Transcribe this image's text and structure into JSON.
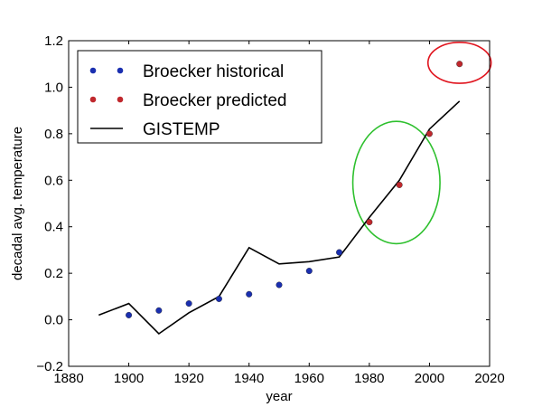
{
  "chart_data": {
    "type": "scatter",
    "xlabel": "year",
    "ylabel": "decadal avg. temperature",
    "xlim": [
      1880,
      2020
    ],
    "ylim": [
      -0.2,
      1.2
    ],
    "x_ticks": [
      1880,
      1900,
      1920,
      1940,
      1960,
      1980,
      2000,
      2020
    ],
    "y_ticks": [
      -0.2,
      0.0,
      0.2,
      0.4,
      0.6,
      0.8,
      1.0,
      1.2
    ],
    "x_tick_labels": [
      "1880",
      "1900",
      "1920",
      "1940",
      "1960",
      "1980",
      "2000",
      "2020"
    ],
    "y_tick_labels": [
      "−0.2",
      "0.0",
      "0.2",
      "0.4",
      "0.6",
      "0.8",
      "1.0",
      "1.2"
    ],
    "grid": false,
    "legend_position": "upper-left",
    "series": [
      {
        "name": "Broecker historical",
        "kind": "scatter",
        "color": "#1a2fb0",
        "x": [
          1900,
          1910,
          1920,
          1930,
          1940,
          1950,
          1960,
          1970
        ],
        "y": [
          0.02,
          0.04,
          0.07,
          0.09,
          0.11,
          0.15,
          0.21,
          0.29
        ]
      },
      {
        "name": "Broecker predicted",
        "kind": "scatter",
        "color": "#c0282d",
        "x": [
          1980,
          1990,
          2000,
          2010
        ],
        "y": [
          0.42,
          0.58,
          0.8,
          1.1
        ]
      },
      {
        "name": "GISTEMP",
        "kind": "line",
        "color": "#000000",
        "x": [
          1890,
          1900,
          1910,
          1920,
          1930,
          1940,
          1950,
          1960,
          1970,
          1980,
          1990,
          2000,
          2010
        ],
        "y": [
          0.02,
          0.07,
          -0.06,
          0.03,
          0.1,
          0.31,
          0.24,
          0.25,
          0.27,
          0.44,
          0.6,
          0.82,
          0.94
        ]
      }
    ],
    "annotations": [
      {
        "kind": "ellipse-highlight",
        "color": "#2ec02e",
        "center": [
          1989,
          0.59
        ],
        "radii_data": [
          14.5,
          0.263
        ]
      },
      {
        "kind": "ellipse-highlight",
        "color": "#e0141e",
        "center": [
          2010,
          1.105
        ],
        "radii_data": [
          10.5,
          0.088
        ]
      }
    ]
  }
}
